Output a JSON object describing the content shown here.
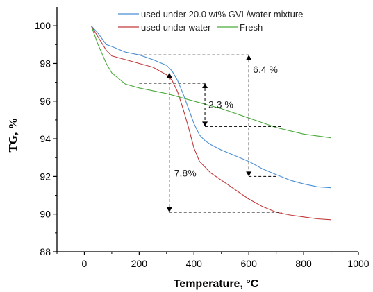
{
  "chart_data": {
    "type": "line",
    "title": "",
    "xlabel": "Temperature, °C",
    "ylabel": "TG, %",
    "xlim": [
      -100,
      1000
    ],
    "ylim": [
      88,
      101
    ],
    "x_ticks": [
      0,
      200,
      400,
      600,
      800,
      1000
    ],
    "y_ticks": [
      88,
      90,
      92,
      94,
      96,
      98,
      100
    ],
    "grid": false,
    "legend_position": "top-right",
    "series": [
      {
        "name": "used under 20.0 wt% GVL/water mixture",
        "color": "#4a8fd4",
        "x": [
          25,
          50,
          80,
          100,
          150,
          200,
          250,
          300,
          320,
          340,
          360,
          380,
          400,
          420,
          440,
          460,
          500,
          550,
          600,
          650,
          700,
          750,
          800,
          850,
          900
        ],
        "y": [
          100.0,
          99.6,
          99.0,
          98.9,
          98.6,
          98.45,
          98.2,
          97.9,
          97.6,
          97.1,
          96.4,
          95.6,
          94.8,
          94.2,
          93.9,
          93.7,
          93.4,
          93.1,
          92.8,
          92.4,
          92.1,
          91.8,
          91.6,
          91.45,
          91.4
        ]
      },
      {
        "name": "used under water",
        "color": "#c0393b",
        "x": [
          25,
          50,
          80,
          100,
          150,
          200,
          250,
          300,
          320,
          340,
          360,
          380,
          400,
          420,
          440,
          460,
          500,
          550,
          600,
          650,
          700,
          750,
          800,
          850,
          900
        ],
        "y": [
          100.0,
          99.4,
          98.7,
          98.4,
          98.2,
          98.0,
          97.8,
          97.4,
          97.1,
          96.5,
          95.6,
          94.6,
          93.5,
          92.8,
          92.5,
          92.2,
          91.8,
          91.3,
          90.8,
          90.4,
          90.1,
          89.95,
          89.85,
          89.75,
          89.7
        ]
      },
      {
        "name": "Fresh",
        "color": "#4caa3c",
        "x": [
          25,
          50,
          80,
          100,
          150,
          200,
          300,
          400,
          500,
          600,
          700,
          800,
          900
        ],
        "y": [
          100.0,
          99.0,
          98.0,
          97.5,
          96.9,
          96.7,
          96.4,
          96.0,
          95.6,
          95.1,
          94.6,
          94.25,
          94.05
        ]
      }
    ],
    "annotations": [
      {
        "label": "6.4 %",
        "x": 600,
        "y": 95.9
      },
      {
        "label": "2.3 %",
        "x": 450,
        "y": 95.6
      },
      {
        "label": "7.8%",
        "x": 320,
        "y": 92.0
      }
    ]
  }
}
